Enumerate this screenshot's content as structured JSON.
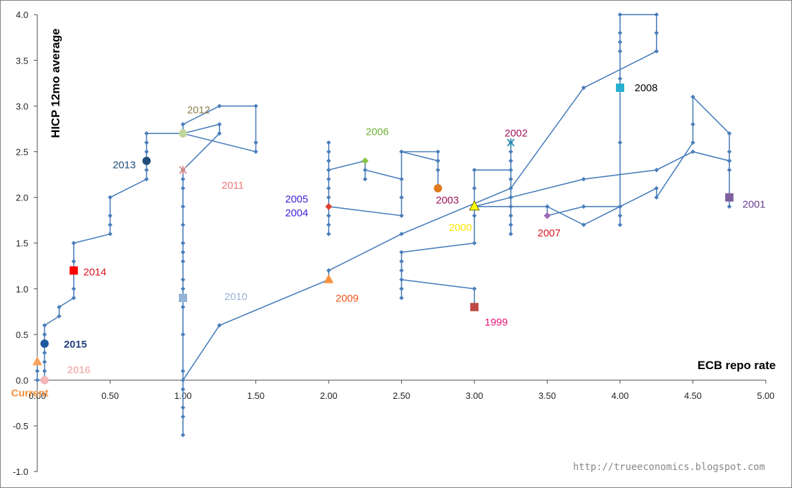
{
  "chart_data": {
    "type": "scatter",
    "xlabel": "ECB repo rate",
    "ylabel": "HICP 12mo average",
    "xlim": [
      0,
      5
    ],
    "ylim": [
      -1,
      4
    ],
    "x_ticks": [
      "0.00",
      "0.50",
      "1.00",
      "1.50",
      "2.00",
      "2.50",
      "3.00",
      "3.50",
      "4.00",
      "4.50",
      "5.00"
    ],
    "y_ticks": [
      "-1.0",
      "-0.5",
      "0.0",
      "0.5",
      "1.0",
      "1.5",
      "2.0",
      "2.5",
      "3.0",
      "3.5",
      "4.0"
    ],
    "line_color": "#4a7ebb",
    "path": [
      [
        3.0,
        0.8
      ],
      [
        3.0,
        1.0
      ],
      [
        2.5,
        1.1
      ],
      [
        2.5,
        1.2
      ],
      [
        2.5,
        1.3
      ],
      [
        2.5,
        1.0
      ],
      [
        2.5,
        0.9
      ],
      [
        2.5,
        1.4
      ],
      [
        3.0,
        1.5
      ],
      [
        3.0,
        1.8
      ],
      [
        3.0,
        1.9
      ],
      [
        3.0,
        2.1
      ],
      [
        3.0,
        2.3
      ],
      [
        3.25,
        2.3
      ],
      [
        3.25,
        2.4
      ],
      [
        3.25,
        2.5
      ],
      [
        3.25,
        2.6
      ],
      [
        3.25,
        2.2
      ],
      [
        3.25,
        2.0
      ],
      [
        3.25,
        1.8
      ],
      [
        3.25,
        1.7
      ],
      [
        3.25,
        1.6
      ],
      [
        3.25,
        1.9
      ],
      [
        3.5,
        1.9
      ],
      [
        3.75,
        1.7
      ],
      [
        4.0,
        1.9
      ],
      [
        4.25,
        2.1
      ],
      [
        4.25,
        2.0
      ],
      [
        4.5,
        2.6
      ],
      [
        4.5,
        2.8
      ],
      [
        4.5,
        3.1
      ],
      [
        4.75,
        2.7
      ],
      [
        4.75,
        2.5
      ],
      [
        4.75,
        2.4
      ],
      [
        4.75,
        2.3
      ],
      [
        4.75,
        2.0
      ],
      [
        4.75,
        1.9
      ],
      [
        4.75,
        2.4
      ],
      [
        4.5,
        2.5
      ],
      [
        4.25,
        2.3
      ],
      [
        3.75,
        2.2
      ],
      [
        3.25,
        2.0
      ],
      [
        3.0,
        1.9
      ],
      [
        3.5,
        1.9
      ],
      [
        3.5,
        1.8
      ],
      [
        3.75,
        1.9
      ],
      [
        4.0,
        1.9
      ],
      [
        4.0,
        1.8
      ],
      [
        4.0,
        1.7
      ],
      [
        4.0,
        2.6
      ],
      [
        4.0,
        3.2
      ],
      [
        4.0,
        3.3
      ],
      [
        4.0,
        3.6
      ],
      [
        4.0,
        3.7
      ],
      [
        4.0,
        3.8
      ],
      [
        4.0,
        4.0
      ],
      [
        4.25,
        4.0
      ],
      [
        4.25,
        3.8
      ],
      [
        4.25,
        3.6
      ],
      [
        3.75,
        3.2
      ],
      [
        3.25,
        2.1
      ],
      [
        2.5,
        1.6
      ],
      [
        2.0,
        1.2
      ],
      [
        2.0,
        1.1
      ],
      [
        1.25,
        0.6
      ],
      [
        1.0,
        0.0
      ],
      [
        1.0,
        -0.1
      ],
      [
        1.0,
        -0.3
      ],
      [
        1.0,
        -0.4
      ],
      [
        1.0,
        -0.6
      ],
      [
        1.0,
        0.1
      ],
      [
        1.0,
        0.5
      ],
      [
        1.0,
        0.8
      ],
      [
        1.0,
        0.9
      ],
      [
        1.0,
        1.0
      ],
      [
        1.0,
        1.1
      ],
      [
        1.0,
        1.3
      ],
      [
        1.0,
        1.4
      ],
      [
        1.0,
        1.5
      ],
      [
        1.0,
        1.7
      ],
      [
        1.0,
        1.9
      ],
      [
        1.0,
        2.1
      ],
      [
        1.0,
        2.2
      ],
      [
        1.0,
        2.3
      ],
      [
        1.25,
        2.7
      ],
      [
        1.25,
        2.8
      ],
      [
        1.0,
        2.7
      ],
      [
        1.0,
        2.8
      ],
      [
        1.25,
        3.0
      ],
      [
        1.5,
        3.0
      ],
      [
        1.5,
        2.6
      ],
      [
        1.5,
        2.5
      ],
      [
        1.0,
        2.7
      ],
      [
        0.75,
        2.7
      ],
      [
        0.75,
        2.6
      ],
      [
        0.75,
        2.5
      ],
      [
        0.75,
        2.4
      ],
      [
        0.75,
        2.3
      ],
      [
        0.75,
        2.2
      ],
      [
        0.5,
        2.0
      ],
      [
        0.5,
        1.8
      ],
      [
        0.5,
        1.7
      ],
      [
        0.5,
        1.6
      ],
      [
        0.25,
        1.5
      ],
      [
        0.25,
        1.3
      ],
      [
        0.25,
        1.2
      ],
      [
        0.25,
        1.0
      ],
      [
        0.25,
        0.9
      ],
      [
        0.15,
        0.8
      ],
      [
        0.15,
        0.7
      ],
      [
        0.05,
        0.6
      ],
      [
        0.05,
        0.5
      ],
      [
        0.05,
        0.4
      ],
      [
        0.05,
        0.3
      ],
      [
        0.05,
        0.2
      ],
      [
        0.05,
        0.1
      ],
      [
        0.05,
        0.0
      ],
      [
        0.0,
        0.0
      ],
      [
        0.0,
        0.1
      ],
      [
        0.0,
        0.2
      ]
    ],
    "path2": [
      [
        2.0,
        1.9
      ],
      [
        2.0,
        1.8
      ],
      [
        2.0,
        1.7
      ],
      [
        2.0,
        1.6
      ],
      [
        2.0,
        2.0
      ],
      [
        2.0,
        2.1
      ],
      [
        2.0,
        2.2
      ],
      [
        2.0,
        2.3
      ],
      [
        2.0,
        2.4
      ],
      [
        2.0,
        2.5
      ],
      [
        2.0,
        2.6
      ],
      [
        2.0,
        2.3
      ],
      [
        2.25,
        2.4
      ],
      [
        2.25,
        2.2
      ],
      [
        2.25,
        2.3
      ],
      [
        2.5,
        2.2
      ],
      [
        2.5,
        2.5
      ],
      [
        2.75,
        2.5
      ],
      [
        2.75,
        2.4
      ],
      [
        2.75,
        2.3
      ],
      [
        2.75,
        2.1
      ],
      [
        2.75,
        2.4
      ],
      [
        2.5,
        2.5
      ],
      [
        2.5,
        2.0
      ],
      [
        2.5,
        1.8
      ],
      [
        2.0,
        1.9
      ]
    ],
    "highlights": [
      {
        "label": "1999",
        "x": 3.0,
        "y": 0.8,
        "color": "#be4b48",
        "marker": "square"
      },
      {
        "label": "2000",
        "x": 3.0,
        "y": 1.9,
        "color": "#ffff00",
        "marker": "triangle"
      },
      {
        "label": "2001",
        "x": 4.75,
        "y": 2.0,
        "color": "#7f5fa0",
        "marker": "square"
      },
      {
        "label": "2002",
        "x": 3.25,
        "y": 2.6,
        "color": "#2a8fb0",
        "marker": "star"
      },
      {
        "label": "2003",
        "x": 2.75,
        "y": 2.1,
        "color": "#e07b20",
        "marker": "circle"
      },
      {
        "label": "2004",
        "x": 2.0,
        "y": 1.9,
        "color": "#e03c30",
        "marker": "diamond"
      },
      {
        "label": "2006",
        "x": 2.25,
        "y": 2.4,
        "color": "#8ac24a",
        "marker": "diamond"
      },
      {
        "label": "2007",
        "x": 3.5,
        "y": 1.8,
        "color": "#9b6bb8",
        "marker": "diamond"
      },
      {
        "label": "2008",
        "x": 4.0,
        "y": 3.2,
        "color": "#26b0d0",
        "marker": "square"
      },
      {
        "label": "2009",
        "x": 2.0,
        "y": 1.1,
        "color": "#f7913d",
        "marker": "triangle"
      },
      {
        "label": "2010",
        "x": 1.0,
        "y": 0.9,
        "color": "#95b3d7",
        "marker": "square"
      },
      {
        "label": "2011",
        "x": 1.0,
        "y": 2.3,
        "color": "#d98a8a",
        "marker": "star"
      },
      {
        "label": "2012",
        "x": 1.0,
        "y": 2.7,
        "color": "#c3d69b",
        "marker": "circle"
      },
      {
        "label": "2013",
        "x": 0.75,
        "y": 2.4,
        "color": "#1f4e79",
        "marker": "circle"
      },
      {
        "label": "2014",
        "x": 0.25,
        "y": 1.2,
        "color": "#ff0000",
        "marker": "square"
      },
      {
        "label": "2015",
        "x": 0.05,
        "y": 0.4,
        "color": "#1f5aa0",
        "marker": "circle"
      },
      {
        "label": "2016",
        "x": 0.05,
        "y": 0.0,
        "color": "#f4b8b8",
        "marker": "circle"
      },
      {
        "label": "Current",
        "x": 0.0,
        "y": 0.2,
        "color": "#f7a35c",
        "marker": "triangle"
      }
    ],
    "year_labels": [
      {
        "text": "1999",
        "color": "#e8157a"
      },
      {
        "text": "2000",
        "color": "#ffe500"
      },
      {
        "text": "2001",
        "color": "#6b3f8f"
      },
      {
        "text": "2002",
        "color": "#a0155a"
      },
      {
        "text": "2003",
        "color": "#a0155a"
      },
      {
        "text": "2004",
        "color": "#3c1fd8"
      },
      {
        "text": "2005",
        "color": "#3c1fd8"
      },
      {
        "text": "2006",
        "color": "#6fb33a"
      },
      {
        "text": "2007",
        "color": "#d8161f"
      },
      {
        "text": "2008",
        "color": "#000000"
      },
      {
        "text": "2009",
        "color": "#f0541a"
      },
      {
        "text": "2010",
        "color": "#95b3d7"
      },
      {
        "text": "2011",
        "color": "#ef7a7a"
      },
      {
        "text": "2012",
        "color": "#8a8045"
      },
      {
        "text": "2013",
        "color": "#1f4e79"
      },
      {
        "text": "2014",
        "color": "#d8161f"
      },
      {
        "text": "2015",
        "color": "#1f3f7a"
      },
      {
        "text": "2016",
        "color": "#f4b8b8"
      },
      {
        "text": "Current",
        "color": "#f7913d"
      }
    ],
    "grid": false
  },
  "credit": "http://trueeconomics.blogspot.com"
}
